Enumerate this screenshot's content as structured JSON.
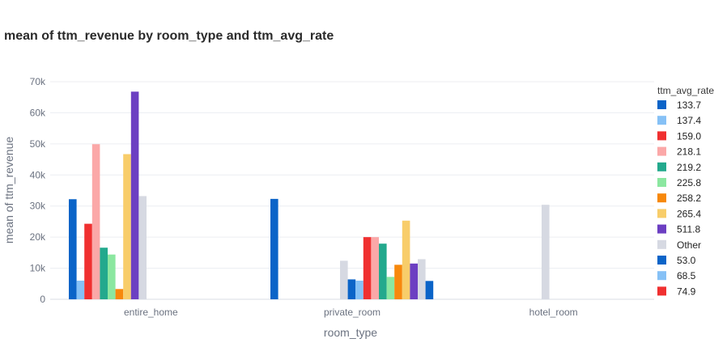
{
  "chart_data": {
    "type": "bar",
    "title": "mean of ttm_revenue by room_type and ttm_avg_rate",
    "xlabel": "room_type",
    "ylabel": "mean of ttm_revenue",
    "ylim": [
      0,
      70000
    ],
    "yticks": [
      0,
      10000,
      20000,
      30000,
      40000,
      50000,
      60000,
      70000
    ],
    "ytick_labels": [
      "0",
      "10k",
      "20k",
      "30k",
      "40k",
      "50k",
      "60k",
      "70k"
    ],
    "categories": [
      "entire_home",
      "private_room",
      "hotel_room"
    ],
    "legend_title": "ttm_avg_rate",
    "legend_position": "right",
    "grid": true,
    "series": [
      {
        "name": "133.7",
        "color": "#0b64c8",
        "values": [
          32200,
          32300,
          null
        ]
      },
      {
        "name": "137.4",
        "color": "#86c1f6",
        "values": [
          6000,
          null,
          null
        ]
      },
      {
        "name": "159.0",
        "color": "#f03030",
        "values": [
          24300,
          null,
          null
        ]
      },
      {
        "name": "218.1",
        "color": "#fba8a8",
        "values": [
          49900,
          null,
          null
        ]
      },
      {
        "name": "219.2",
        "color": "#23a98d",
        "values": [
          16600,
          null,
          null
        ]
      },
      {
        "name": "225.8",
        "color": "#8be7a0",
        "values": [
          14400,
          null,
          null
        ]
      },
      {
        "name": "258.2",
        "color": "#f7880c",
        "values": [
          3300,
          null,
          null
        ]
      },
      {
        "name": "265.4",
        "color": "#f8cd6a",
        "values": [
          46700,
          null,
          null
        ]
      },
      {
        "name": "511.8",
        "color": "#6c3fc2",
        "values": [
          66800,
          null,
          null
        ]
      },
      {
        "name": "Other",
        "color": "#d6d9e2",
        "values": [
          33200,
          null,
          30400
        ]
      }
    ],
    "private_room_bars": [
      {
        "rate": "Other",
        "color": "#d6d9e2",
        "value": 12400
      },
      {
        "rate": "53.0",
        "color": "#0b64c8",
        "value": 6400
      },
      {
        "rate": "68.5",
        "color": "#86c1f6",
        "value": 6000
      },
      {
        "rate": "74.9",
        "color": "#f03030",
        "value": 20000
      },
      {
        "rate": "",
        "color": "#fba8a8",
        "value": 20000
      },
      {
        "rate": "",
        "color": "#23a98d",
        "value": 17900
      },
      {
        "rate": "",
        "color": "#8be7a0",
        "value": 7200
      },
      {
        "rate": "",
        "color": "#f7880c",
        "value": 11100
      },
      {
        "rate": "",
        "color": "#f8cd6a",
        "value": 25300
      },
      {
        "rate": "",
        "color": "#6c3fc2",
        "value": 11500
      },
      {
        "rate": "",
        "color": "#d6d9e2",
        "value": 12900
      },
      {
        "rate": "",
        "color": "#0b64c8",
        "value": 5900
      }
    ],
    "legend": [
      {
        "label": "133.7",
        "color": "#0b64c8"
      },
      {
        "label": "137.4",
        "color": "#86c1f6"
      },
      {
        "label": "159.0",
        "color": "#f03030"
      },
      {
        "label": "218.1",
        "color": "#fba8a8"
      },
      {
        "label": "219.2",
        "color": "#23a98d"
      },
      {
        "label": "225.8",
        "color": "#8be7a0"
      },
      {
        "label": "258.2",
        "color": "#f7880c"
      },
      {
        "label": "265.4",
        "color": "#f8cd6a"
      },
      {
        "label": "511.8",
        "color": "#6c3fc2"
      },
      {
        "label": "Other",
        "color": "#d6d9e2"
      },
      {
        "label": "53.0",
        "color": "#0b64c8"
      },
      {
        "label": "68.5",
        "color": "#86c1f6"
      },
      {
        "label": "74.9",
        "color": "#f03030"
      }
    ]
  }
}
